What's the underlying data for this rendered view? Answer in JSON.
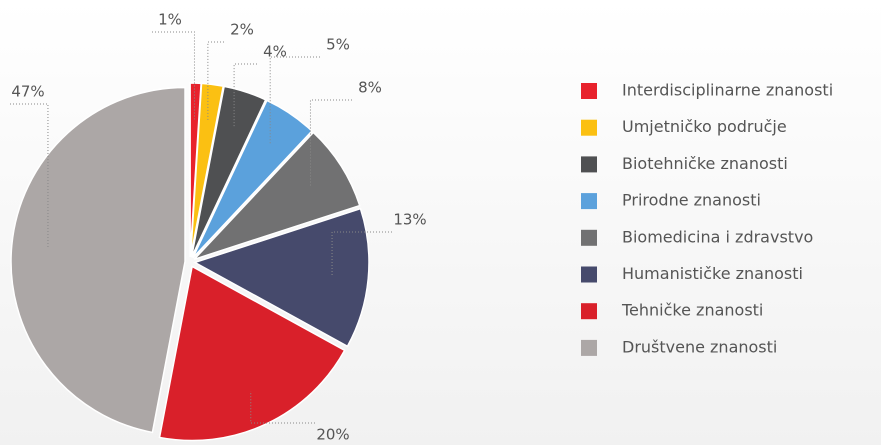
{
  "chart_data": {
    "type": "pie",
    "categories": [
      "Interdisciplinarne znanosti",
      "Umjetničko područje",
      "Biotehničke znanosti",
      "Prirodne znanosti",
      "Biomedicina i zdravstvo",
      "Humanističke znanosti",
      "Tehničke znanosti",
      "Društvene znanosti"
    ],
    "values": [
      1,
      2,
      4,
      5,
      8,
      13,
      20,
      47
    ],
    "value_labels": [
      "1%",
      "2%",
      "4%",
      "5%",
      "8%",
      "13%",
      "20%",
      "47%"
    ],
    "colors": [
      "#e8222c",
      "#fbc012",
      "#4f5052",
      "#5ba1dc",
      "#717172",
      "#464a6c",
      "#d9202a",
      "#aca7a6"
    ]
  }
}
